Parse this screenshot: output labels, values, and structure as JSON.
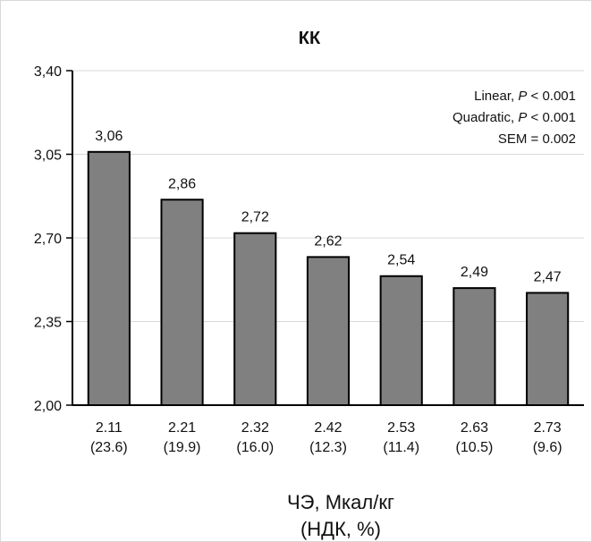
{
  "chart_data": {
    "type": "bar",
    "title": "КК",
    "categories": [
      "2.11",
      "2.21",
      "2.32",
      "2.42",
      "2.53",
      "2.63",
      "2.73"
    ],
    "subcategories": [
      "(23.6)",
      "(19.9)",
      "(16.0)",
      "(12.3)",
      "(11.4)",
      "(10.5)",
      "(9.6)"
    ],
    "values": [
      3.06,
      2.86,
      2.72,
      2.62,
      2.54,
      2.49,
      2.47
    ],
    "value_labels": [
      "3,06",
      "2,86",
      "2,72",
      "2,62",
      "2,54",
      "2,49",
      "2,47"
    ],
    "ylim": [
      2.0,
      3.4
    ],
    "yticks": [
      2.0,
      2.35,
      2.7,
      3.05,
      3.4
    ],
    "ytick_labels": [
      "2,00",
      "2,35",
      "2,70",
      "3,05",
      "3,40"
    ],
    "xlabel_line1": "ЧЭ, Мкал/кг",
    "xlabel_line2": "(НДК, %)",
    "grid": true,
    "bar_color": "#808080",
    "bar_edge_color": "#000000",
    "annotations": [
      {
        "text": "Linear, ",
        "italic": "P",
        "rest": " < 0.001"
      },
      {
        "text": "Quadratic, ",
        "italic": "P",
        "rest": " < 0.001"
      },
      {
        "text": "SEM = 0.002",
        "italic": "",
        "rest": ""
      }
    ]
  }
}
